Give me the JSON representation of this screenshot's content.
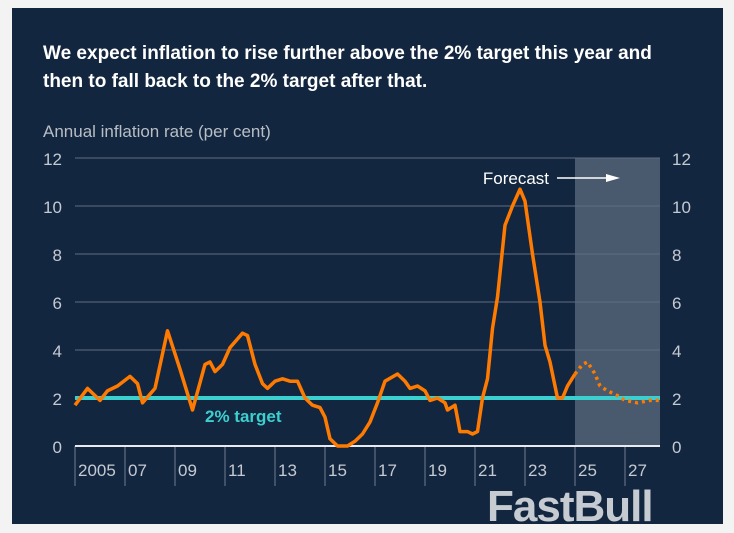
{
  "title": "We expect inflation to rise further above the 2% target this year and then to fall back to the 2% target after that.",
  "watermark": "FastBull",
  "colors": {
    "background": "#13263f",
    "series": "#ff7a00",
    "target": "#3ccfd0",
    "forecast_shade": "#4a5a6e",
    "text": "#c5cad2"
  },
  "chart_data": {
    "type": "line",
    "title": "We expect inflation to rise further above the 2% target this year and then to fall back to the 2% target after that.",
    "ylabel": "Annual inflation rate (per cent)",
    "xlabel": "",
    "ylim": [
      0,
      12
    ],
    "xlim": [
      2005,
      2028.4
    ],
    "yticks": [
      "0",
      "2",
      "4",
      "6",
      "8",
      "10",
      "12"
    ],
    "xticks": [
      {
        "x": 2005,
        "label": "2005"
      },
      {
        "x": 2007,
        "label": "07"
      },
      {
        "x": 2009,
        "label": "09"
      },
      {
        "x": 2011,
        "label": "11"
      },
      {
        "x": 2013,
        "label": "13"
      },
      {
        "x": 2015,
        "label": "15"
      },
      {
        "x": 2017,
        "label": "17"
      },
      {
        "x": 2019,
        "label": "19"
      },
      {
        "x": 2021,
        "label": "21"
      },
      {
        "x": 2023,
        "label": "23"
      },
      {
        "x": 2025,
        "label": "25"
      },
      {
        "x": 2027,
        "label": "27"
      }
    ],
    "grid": true,
    "target": {
      "value": 2,
      "label": "2% target"
    },
    "forecast": {
      "start": 2025.0,
      "label": "Forecast"
    },
    "series": [
      {
        "style": "solid",
        "points": [
          [
            2005.0,
            1.7
          ],
          [
            2005.5,
            2.4
          ],
          [
            2006.0,
            1.9
          ],
          [
            2006.3,
            2.3
          ],
          [
            2006.7,
            2.5
          ],
          [
            2007.2,
            2.9
          ],
          [
            2007.5,
            2.6
          ],
          [
            2007.7,
            1.8
          ],
          [
            2008.2,
            2.4
          ],
          [
            2008.7,
            4.8
          ],
          [
            2009.2,
            3.2
          ],
          [
            2009.7,
            1.5
          ],
          [
            2010.2,
            3.4
          ],
          [
            2010.4,
            3.5
          ],
          [
            2010.6,
            3.1
          ],
          [
            2010.9,
            3.4
          ],
          [
            2011.2,
            4.1
          ],
          [
            2011.7,
            4.7
          ],
          [
            2011.9,
            4.6
          ],
          [
            2012.2,
            3.4
          ],
          [
            2012.5,
            2.6
          ],
          [
            2012.7,
            2.4
          ],
          [
            2013.0,
            2.7
          ],
          [
            2013.3,
            2.8
          ],
          [
            2013.6,
            2.7
          ],
          [
            2013.9,
            2.7
          ],
          [
            2014.2,
            2.0
          ],
          [
            2014.5,
            1.7
          ],
          [
            2014.8,
            1.6
          ],
          [
            2015.0,
            1.2
          ],
          [
            2015.2,
            0.3
          ],
          [
            2015.5,
            0.0
          ],
          [
            2015.9,
            0.0
          ],
          [
            2016.2,
            0.2
          ],
          [
            2016.5,
            0.5
          ],
          [
            2016.8,
            1.0
          ],
          [
            2017.1,
            1.8
          ],
          [
            2017.4,
            2.7
          ],
          [
            2017.9,
            3.0
          ],
          [
            2018.2,
            2.7
          ],
          [
            2018.4,
            2.4
          ],
          [
            2018.7,
            2.5
          ],
          [
            2019.0,
            2.3
          ],
          [
            2019.2,
            1.9
          ],
          [
            2019.5,
            2.0
          ],
          [
            2019.8,
            1.8
          ],
          [
            2019.9,
            1.5
          ],
          [
            2020.2,
            1.7
          ],
          [
            2020.4,
            0.6
          ],
          [
            2020.7,
            0.6
          ],
          [
            2020.9,
            0.5
          ],
          [
            2021.1,
            0.6
          ],
          [
            2021.3,
            2.0
          ],
          [
            2021.5,
            2.8
          ],
          [
            2021.7,
            4.9
          ],
          [
            2021.9,
            6.2
          ],
          [
            2022.2,
            9.2
          ],
          [
            2022.5,
            10.0
          ],
          [
            2022.8,
            10.7
          ],
          [
            2023.0,
            10.2
          ],
          [
            2023.3,
            8.0
          ],
          [
            2023.6,
            6.0
          ],
          [
            2023.8,
            4.2
          ],
          [
            2024.0,
            3.5
          ],
          [
            2024.3,
            2.0
          ],
          [
            2024.5,
            2.0
          ],
          [
            2024.7,
            2.5
          ],
          [
            2025.0,
            3.0
          ]
        ]
      },
      {
        "style": "dotted",
        "points": [
          [
            2025.0,
            3.0
          ],
          [
            2025.3,
            3.4
          ],
          [
            2025.5,
            3.5
          ],
          [
            2025.8,
            3.0
          ],
          [
            2026.0,
            2.5
          ],
          [
            2026.3,
            2.3
          ],
          [
            2026.7,
            2.1
          ],
          [
            2027.0,
            1.9
          ],
          [
            2027.5,
            1.8
          ],
          [
            2028.0,
            1.9
          ],
          [
            2028.4,
            1.9
          ]
        ]
      }
    ]
  }
}
